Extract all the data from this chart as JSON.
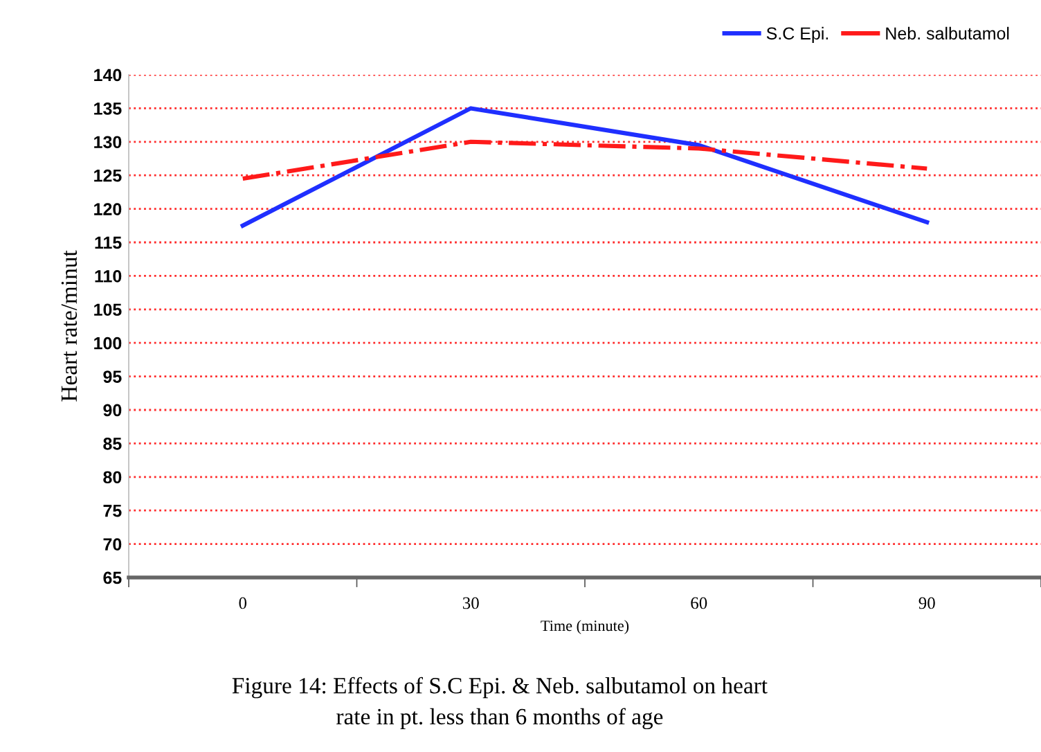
{
  "chart_data": {
    "type": "line",
    "xlabel": "Time (minute)",
    "ylabel": "Heart rate/minut",
    "categories": [
      "0",
      "30",
      "60",
      "90"
    ],
    "series": [
      {
        "name": "S.C Epi.",
        "color": "#1f2fff",
        "values": [
          117.5,
          135,
          129.5,
          118
        ],
        "line_style": "solid"
      },
      {
        "name": "Neb. salbutamol",
        "color": "#ff1a1a",
        "values": [
          124.5,
          130,
          129,
          126
        ],
        "line_style": "dashdot"
      }
    ],
    "ylim": [
      65,
      140
    ],
    "yticks": [
      65,
      70,
      75,
      80,
      85,
      90,
      95,
      100,
      105,
      110,
      115,
      120,
      125,
      130,
      135,
      140
    ],
    "grid": "y",
    "legend": "top right",
    "marker": "none",
    "annotations": [
      "Figure 14: Effects of S.C Epi. & Neb. salbutamol on heart\nrate in pt. less than 6 months of age"
    ]
  }
}
